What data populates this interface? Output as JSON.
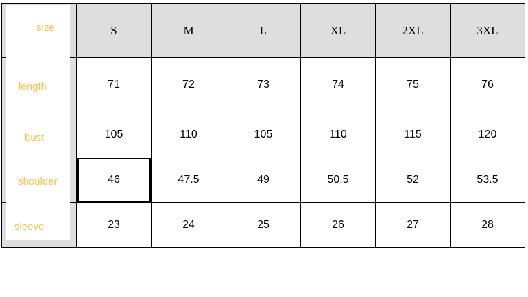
{
  "table": {
    "row_header_label": "size",
    "sizes": [
      "S",
      "M",
      "L",
      "XL",
      "2XL",
      "3XL"
    ],
    "rows": [
      {
        "label": "length",
        "values": [
          "71",
          "72",
          "73",
          "74",
          "75",
          "76"
        ]
      },
      {
        "label": "bust",
        "values": [
          "105",
          "110",
          "105",
          "110",
          "115",
          "120"
        ]
      },
      {
        "label": "shoulder",
        "values": [
          "46",
          "47.5",
          "49",
          "50.5",
          "52",
          "53.5"
        ]
      },
      {
        "label": "sleeve",
        "values": [
          "23",
          "24",
          "25",
          "26",
          "27",
          "28"
        ]
      }
    ]
  },
  "colors": {
    "label_text": "#ffbf4d",
    "header_bg": "#dedede"
  }
}
